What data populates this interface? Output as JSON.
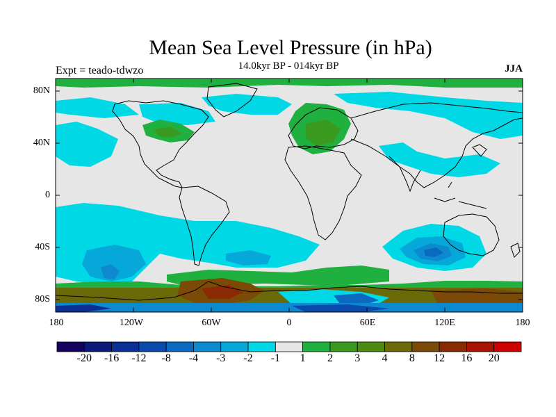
{
  "title": "Mean Sea Level Pressure (in hPa)",
  "subtitle": "14.0kyr BP - 014kyr BP",
  "experiment": "Expt = teado-tdwzo",
  "season": "JJA",
  "axes": {
    "y_ticks": [
      "80N",
      "40N",
      "0",
      "40S",
      "80S"
    ],
    "x_ticks": [
      "180",
      "120W",
      "60W",
      "0",
      "60E",
      "120E",
      "180"
    ]
  },
  "colorbar": {
    "colors": [
      "#14025e",
      "#0b1a7a",
      "#0a2f96",
      "#0a4aad",
      "#0b6ac0",
      "#0c89cf",
      "#05a8d8",
      "#00d8e6",
      "#e6e6e6",
      "#20b040",
      "#3a9a20",
      "#4f8a10",
      "#6a6a08",
      "#7a4a06",
      "#8a2a04",
      "#a81404",
      "#cc0000"
    ],
    "labels": [
      "-20",
      "-16",
      "-12",
      "-8",
      "-4",
      "-3",
      "-2",
      "-1",
      "1",
      "2",
      "3",
      "4",
      "8",
      "12",
      "16",
      "20"
    ]
  },
  "map_colors": {
    "background": "#e6e6e6",
    "cyan": "#00d8e6",
    "light_blue": "#05a8d8",
    "mid_blue": "#0c89cf",
    "green": "#20b040",
    "dark_green": "#3a9a20",
    "brown": "#7a4a06",
    "dark_red": "#8a2a04",
    "coast": "#000000"
  }
}
